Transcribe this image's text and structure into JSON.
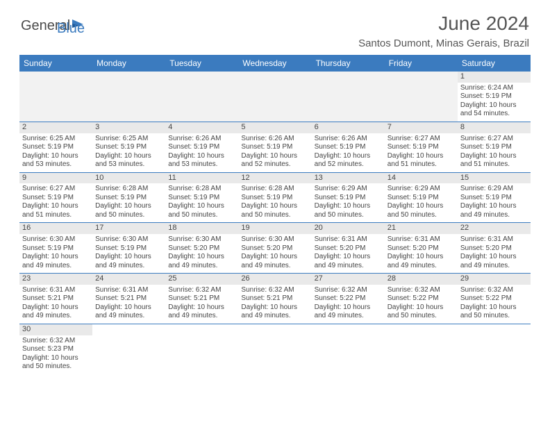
{
  "logo": {
    "text1": "General",
    "text2": "Blue"
  },
  "title": "June 2024",
  "location": "Santos Dumont, Minas Gerais, Brazil",
  "colors": {
    "header_bg": "#3b7bbf",
    "header_text": "#ffffff",
    "daynum_bg": "#e9e9e9",
    "border": "#3b7bbf",
    "text": "#444444",
    "logo_gray": "#4a4a4a",
    "logo_blue": "#3b7bbf"
  },
  "weekdays": [
    "Sunday",
    "Monday",
    "Tuesday",
    "Wednesday",
    "Thursday",
    "Friday",
    "Saturday"
  ],
  "weeks": [
    [
      null,
      null,
      null,
      null,
      null,
      null,
      {
        "n": "1",
        "sr": "6:24 AM",
        "ss": "5:19 PM",
        "dl": "10 hours and 54 minutes."
      }
    ],
    [
      {
        "n": "2",
        "sr": "6:25 AM",
        "ss": "5:19 PM",
        "dl": "10 hours and 53 minutes."
      },
      {
        "n": "3",
        "sr": "6:25 AM",
        "ss": "5:19 PM",
        "dl": "10 hours and 53 minutes."
      },
      {
        "n": "4",
        "sr": "6:26 AM",
        "ss": "5:19 PM",
        "dl": "10 hours and 53 minutes."
      },
      {
        "n": "5",
        "sr": "6:26 AM",
        "ss": "5:19 PM",
        "dl": "10 hours and 52 minutes."
      },
      {
        "n": "6",
        "sr": "6:26 AM",
        "ss": "5:19 PM",
        "dl": "10 hours and 52 minutes."
      },
      {
        "n": "7",
        "sr": "6:27 AM",
        "ss": "5:19 PM",
        "dl": "10 hours and 51 minutes."
      },
      {
        "n": "8",
        "sr": "6:27 AM",
        "ss": "5:19 PM",
        "dl": "10 hours and 51 minutes."
      }
    ],
    [
      {
        "n": "9",
        "sr": "6:27 AM",
        "ss": "5:19 PM",
        "dl": "10 hours and 51 minutes."
      },
      {
        "n": "10",
        "sr": "6:28 AM",
        "ss": "5:19 PM",
        "dl": "10 hours and 50 minutes."
      },
      {
        "n": "11",
        "sr": "6:28 AM",
        "ss": "5:19 PM",
        "dl": "10 hours and 50 minutes."
      },
      {
        "n": "12",
        "sr": "6:28 AM",
        "ss": "5:19 PM",
        "dl": "10 hours and 50 minutes."
      },
      {
        "n": "13",
        "sr": "6:29 AM",
        "ss": "5:19 PM",
        "dl": "10 hours and 50 minutes."
      },
      {
        "n": "14",
        "sr": "6:29 AM",
        "ss": "5:19 PM",
        "dl": "10 hours and 50 minutes."
      },
      {
        "n": "15",
        "sr": "6:29 AM",
        "ss": "5:19 PM",
        "dl": "10 hours and 49 minutes."
      }
    ],
    [
      {
        "n": "16",
        "sr": "6:30 AM",
        "ss": "5:19 PM",
        "dl": "10 hours and 49 minutes."
      },
      {
        "n": "17",
        "sr": "6:30 AM",
        "ss": "5:19 PM",
        "dl": "10 hours and 49 minutes."
      },
      {
        "n": "18",
        "sr": "6:30 AM",
        "ss": "5:20 PM",
        "dl": "10 hours and 49 minutes."
      },
      {
        "n": "19",
        "sr": "6:30 AM",
        "ss": "5:20 PM",
        "dl": "10 hours and 49 minutes."
      },
      {
        "n": "20",
        "sr": "6:31 AM",
        "ss": "5:20 PM",
        "dl": "10 hours and 49 minutes."
      },
      {
        "n": "21",
        "sr": "6:31 AM",
        "ss": "5:20 PM",
        "dl": "10 hours and 49 minutes."
      },
      {
        "n": "22",
        "sr": "6:31 AM",
        "ss": "5:20 PM",
        "dl": "10 hours and 49 minutes."
      }
    ],
    [
      {
        "n": "23",
        "sr": "6:31 AM",
        "ss": "5:21 PM",
        "dl": "10 hours and 49 minutes."
      },
      {
        "n": "24",
        "sr": "6:31 AM",
        "ss": "5:21 PM",
        "dl": "10 hours and 49 minutes."
      },
      {
        "n": "25",
        "sr": "6:32 AM",
        "ss": "5:21 PM",
        "dl": "10 hours and 49 minutes."
      },
      {
        "n": "26",
        "sr": "6:32 AM",
        "ss": "5:21 PM",
        "dl": "10 hours and 49 minutes."
      },
      {
        "n": "27",
        "sr": "6:32 AM",
        "ss": "5:22 PM",
        "dl": "10 hours and 49 minutes."
      },
      {
        "n": "28",
        "sr": "6:32 AM",
        "ss": "5:22 PM",
        "dl": "10 hours and 50 minutes."
      },
      {
        "n": "29",
        "sr": "6:32 AM",
        "ss": "5:22 PM",
        "dl": "10 hours and 50 minutes."
      }
    ],
    [
      {
        "n": "30",
        "sr": "6:32 AM",
        "ss": "5:23 PM",
        "dl": "10 hours and 50 minutes."
      },
      null,
      null,
      null,
      null,
      null,
      null
    ]
  ],
  "labels": {
    "sunrise": "Sunrise:",
    "sunset": "Sunset:",
    "daylight": "Daylight:"
  }
}
